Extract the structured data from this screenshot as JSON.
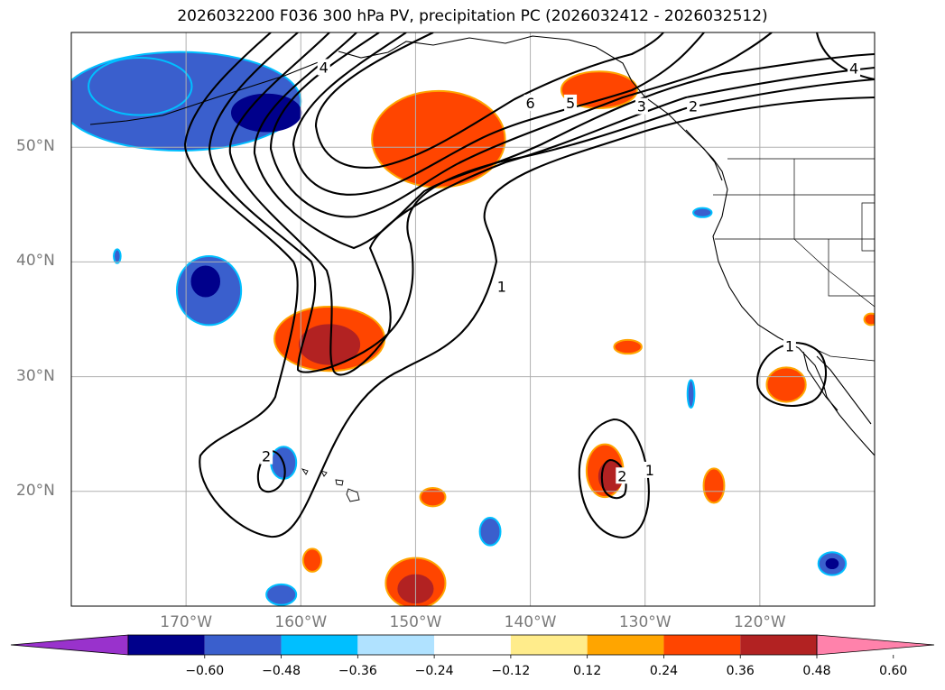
{
  "title": "2026032200 F036 300 hPa PV, precipitation PC (2026032412 - 2026032512)",
  "map_extent": {
    "lon_min": -180,
    "lon_max": -110,
    "lat_min": 10,
    "lat_max": 60
  },
  "lat_labels": [
    {
      "lat": 50,
      "text": "50°N"
    },
    {
      "lat": 40,
      "text": "40°N"
    },
    {
      "lat": 30,
      "text": "30°N"
    },
    {
      "lat": 20,
      "text": "20°N"
    }
  ],
  "lon_labels": [
    {
      "lon": -170,
      "text": "170°W"
    },
    {
      "lon": -160,
      "text": "160°W"
    },
    {
      "lon": -150,
      "text": "150°W"
    },
    {
      "lon": -140,
      "text": "140°W"
    },
    {
      "lon": -130,
      "text": "130°W"
    },
    {
      "lon": -120,
      "text": "120°W"
    }
  ],
  "contour_labels": [
    {
      "text": "1",
      "lon": -142.5,
      "lat": 37.8
    },
    {
      "text": "2",
      "lon": -163.0,
      "lat": 23.0
    },
    {
      "text": "6",
      "lon": -140.0,
      "lat": 53.8
    },
    {
      "text": "5",
      "lon": -136.5,
      "lat": 53.8
    },
    {
      "text": "3",
      "lon": -130.3,
      "lat": 53.5
    },
    {
      "text": "2",
      "lon": -125.8,
      "lat": 53.5
    },
    {
      "text": "4",
      "lon": -111.8,
      "lat": 56.8
    },
    {
      "text": "4",
      "lon": -158.0,
      "lat": 56.9
    },
    {
      "text": "1",
      "lon": -117.4,
      "lat": 32.6
    },
    {
      "text": "1",
      "lon": -129.6,
      "lat": 21.8
    },
    {
      "text": "2",
      "lon": -132.0,
      "lat": 21.3
    }
  ],
  "colorbar": {
    "tick_labels": [
      "−0.60",
      "−0.48",
      "−0.36",
      "−0.24",
      "−0.12",
      "0.12",
      "0.24",
      "0.36",
      "0.48",
      "0.60"
    ],
    "colors": [
      "#9932CC",
      "#00008B",
      "#3A5FCD",
      "#00BFFF",
      "#B0E2FF",
      "#FFFFFF",
      "#FFEC8B",
      "#FFA500",
      "#FF4500",
      "#B22222",
      "#FF82AB"
    ]
  },
  "precip_areas": [
    {
      "name": "precip-north-pacific-blue",
      "lon": -170.5,
      "lat": 54.0,
      "rlon": 10.5,
      "rlat": 4.3,
      "color": "#3A5FCD",
      "edge": "#00BFFF"
    },
    {
      "name": "precip-north-pacific-blue-core",
      "lon": -163.0,
      "lat": 53.0,
      "rlon": 3.0,
      "rlat": 1.6,
      "color": "#00008B",
      "edge": "#00008B"
    },
    {
      "name": "precip-aleutian-blue-west",
      "lon": -174.0,
      "lat": 55.3,
      "rlon": 4.5,
      "rlat": 2.5,
      "color": "#3A5FCD",
      "edge": "#00BFFF"
    },
    {
      "name": "precip-gulf-alaska-red",
      "lon": -148.0,
      "lat": 50.7,
      "rlon": 5.8,
      "rlat": 4.2,
      "color": "#FF4500",
      "edge": "#FFA500"
    },
    {
      "name": "precip-bc-coast-red",
      "lon": -134.0,
      "lat": 55.0,
      "rlon": 3.3,
      "rlat": 1.6,
      "color": "#FF4500",
      "edge": "#FFA500"
    },
    {
      "name": "precip-mid-pacific-blue",
      "lon": -168.0,
      "lat": 37.5,
      "rlon": 2.8,
      "rlat": 3.0,
      "color": "#3A5FCD",
      "edge": "#00BFFF"
    },
    {
      "name": "precip-mid-pacific-blue-core",
      "lon": -168.3,
      "lat": 38.3,
      "rlon": 1.2,
      "rlat": 1.3,
      "color": "#00008B",
      "edge": "#00008B"
    },
    {
      "name": "precip-subtropical-red",
      "lon": -157.5,
      "lat": 33.3,
      "rlon": 4.8,
      "rlat": 2.8,
      "color": "#FF4500",
      "edge": "#FFA500"
    },
    {
      "name": "precip-subtropical-red-core",
      "lon": -157.5,
      "lat": 32.8,
      "rlon": 2.6,
      "rlat": 1.7,
      "color": "#B22222",
      "edge": "#B22222"
    },
    {
      "name": "precip-central-red",
      "lon": -133.5,
      "lat": 21.8,
      "rlon": 1.6,
      "rlat": 2.3,
      "color": "#FF4500",
      "edge": "#FFA500"
    },
    {
      "name": "precip-central-red-core",
      "lon": -133.0,
      "lat": 21.3,
      "rlon": 1.0,
      "rlat": 1.3,
      "color": "#B22222",
      "edge": "#B22222"
    },
    {
      "name": "precip-baja-red",
      "lon": -117.7,
      "lat": 29.3,
      "rlon": 1.7,
      "rlat": 1.5,
      "color": "#FF4500",
      "edge": "#FFA500"
    },
    {
      "name": "precip-hawaii-blue",
      "lon": -161.5,
      "lat": 22.5,
      "rlon": 1.1,
      "rlat": 1.4,
      "color": "#3A5FCD",
      "edge": "#00BFFF"
    },
    {
      "name": "precip-hawaii-south-red",
      "lon": -150.0,
      "lat": 12.0,
      "rlon": 2.6,
      "rlat": 2.2,
      "color": "#FF4500",
      "edge": "#FFA500"
    },
    {
      "name": "precip-hawaii-south-red-core",
      "lon": -150.0,
      "lat": 11.5,
      "rlon": 1.5,
      "rlat": 1.2,
      "color": "#B22222",
      "edge": "#B22222"
    },
    {
      "name": "precip-east-pacific-red",
      "lon": -124.0,
      "lat": 20.5,
      "rlon": 0.9,
      "rlat": 1.5,
      "color": "#FF4500",
      "edge": "#FFA500"
    },
    {
      "name": "precip-central-blue-small",
      "lon": -143.5,
      "lat": 16.5,
      "rlon": 0.9,
      "rlat": 1.2,
      "color": "#3A5FCD",
      "edge": "#00BFFF"
    },
    {
      "name": "precip-south-red-small",
      "lon": -159.0,
      "lat": 14.0,
      "rlon": 0.8,
      "rlat": 1.0,
      "color": "#FF4500",
      "edge": "#FFA500"
    },
    {
      "name": "precip-south-blue-small",
      "lon": -161.7,
      "lat": 11.0,
      "rlon": 1.3,
      "rlat": 0.9,
      "color": "#3A5FCD",
      "edge": "#00BFFF"
    },
    {
      "name": "precip-southeast-blue",
      "lon": -113.7,
      "lat": 13.7,
      "rlon": 1.2,
      "rlat": 1.0,
      "color": "#3A5FCD",
      "edge": "#00BFFF"
    },
    {
      "name": "precip-southeast-blue-core",
      "lon": -113.7,
      "lat": 13.7,
      "rlon": 0.5,
      "rlat": 0.4,
      "color": "#00008B",
      "edge": "#00008B"
    },
    {
      "name": "precip-orange-small-1",
      "lon": -148.5,
      "lat": 19.5,
      "rlon": 1.1,
      "rlat": 0.8,
      "color": "#FF4500",
      "edge": "#FFA500"
    },
    {
      "name": "precip-orange-small-2",
      "lon": -131.5,
      "lat": 32.6,
      "rlon": 1.2,
      "rlat": 0.6,
      "color": "#FF4500",
      "edge": "#FFA500"
    },
    {
      "name": "precip-blue-tiny-1",
      "lon": -126.0,
      "lat": 28.5,
      "rlon": 0.3,
      "rlat": 1.2,
      "color": "#3A5FCD",
      "edge": "#00BFFF"
    },
    {
      "name": "precip-blue-tiny-2",
      "lon": -125.0,
      "lat": 44.3,
      "rlon": 0.8,
      "rlat": 0.4,
      "color": "#3A5FCD",
      "edge": "#00BFFF"
    },
    {
      "name": "precip-blue-tiny-3",
      "lon": -176.0,
      "lat": 40.5,
      "rlon": 0.3,
      "rlat": 0.6,
      "color": "#3A5FCD",
      "edge": "#00BFFF"
    },
    {
      "name": "precip-red-edge-east",
      "lon": -110.3,
      "lat": 35.0,
      "rlon": 0.6,
      "rlat": 0.5,
      "color": "#FF4500",
      "edge": "#FFA500"
    }
  ]
}
